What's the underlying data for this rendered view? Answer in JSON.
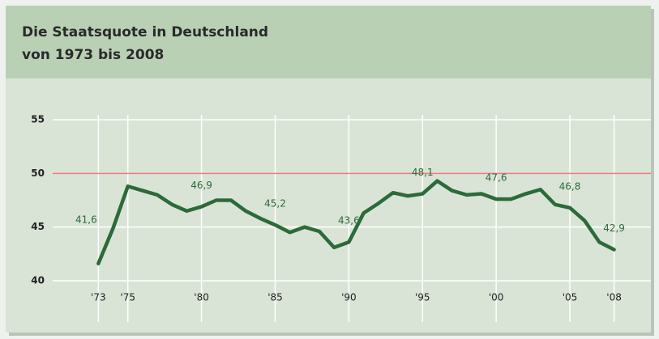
{
  "chart_data": {
    "type": "line",
    "title_lines": [
      "Die Staatsquote in Deutschland",
      "von 1973 bis 2008"
    ],
    "x": [
      1973,
      1974,
      1975,
      1976,
      1977,
      1978,
      1979,
      1980,
      1981,
      1982,
      1983,
      1984,
      1985,
      1986,
      1987,
      1988,
      1989,
      1990,
      1991,
      1992,
      1993,
      1994,
      1995,
      1996,
      1997,
      1998,
      1999,
      2000,
      2001,
      2002,
      2003,
      2004,
      2005,
      2006,
      2007,
      2008
    ],
    "series": [
      {
        "color": "#2d6a3a",
        "values": [
          41.6,
          44.9,
          48.8,
          48.4,
          48.0,
          47.1,
          46.5,
          46.9,
          47.5,
          47.5,
          46.5,
          45.8,
          45.2,
          44.5,
          45.0,
          44.6,
          43.1,
          43.6,
          46.3,
          47.2,
          48.2,
          47.9,
          48.1,
          49.3,
          48.4,
          48.0,
          48.1,
          47.6,
          47.6,
          48.1,
          48.5,
          47.1,
          46.8,
          45.6,
          43.6,
          42.9
        ],
        "value_labels": [
          "41,6",
          null,
          null,
          null,
          null,
          null,
          null,
          "46,9",
          null,
          null,
          null,
          null,
          "45,2",
          null,
          null,
          null,
          null,
          "43,6",
          null,
          null,
          null,
          null,
          "48,1",
          null,
          null,
          null,
          null,
          "47,6",
          null,
          null,
          null,
          null,
          "46,8",
          null,
          null,
          "42,9"
        ]
      }
    ],
    "xlim": [
      1969.9,
      2010.5
    ],
    "xticks": [
      {
        "value": 1973,
        "label": "'73"
      },
      {
        "value": 1975,
        "label": "'75"
      },
      {
        "value": 1980,
        "label": "'80"
      },
      {
        "value": 1985,
        "label": "'85"
      },
      {
        "value": 1990,
        "label": "'90"
      },
      {
        "value": 1995,
        "label": "'95"
      },
      {
        "value": 2000,
        "label": "'00"
      },
      {
        "value": 2005,
        "label": "'05"
      },
      {
        "value": 2008,
        "label": "'08"
      }
    ],
    "ylim": [
      40,
      55
    ],
    "yticks": [
      40,
      45,
      50,
      55
    ],
    "grid": true,
    "reference_value": 50,
    "reference_color": "#f07a7a"
  }
}
